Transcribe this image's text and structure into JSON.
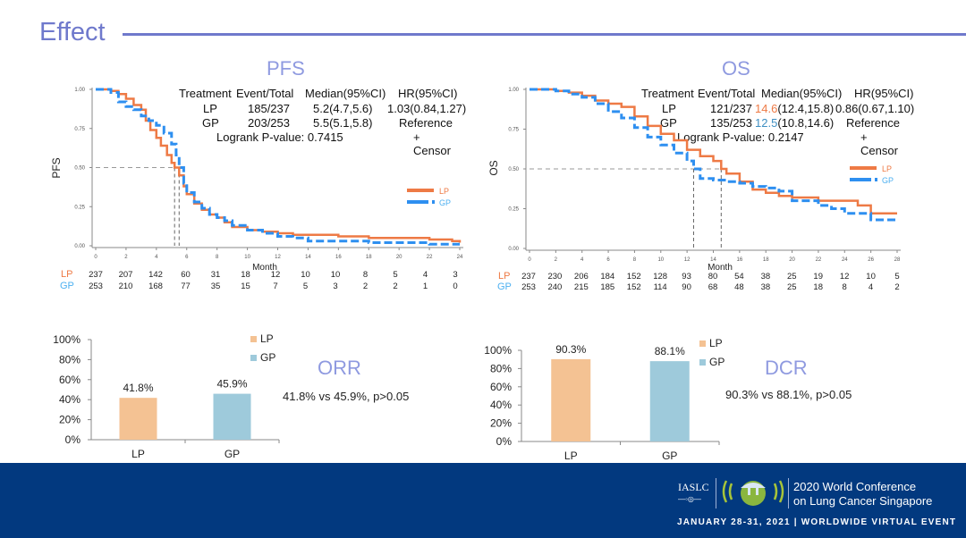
{
  "header": {
    "title": "Effect"
  },
  "pfs": {
    "title": "PFS",
    "table": {
      "headers": [
        "Treatment",
        "Event/Total",
        "Median(95%CI)",
        "HR(95%CI)"
      ],
      "rows": [
        {
          "arm": "LP",
          "events": "185/237",
          "median": "5.2(4.7,5.6)",
          "median_value": "",
          "median_ci": "",
          "hr": "1.03(0.84,1.27)"
        },
        {
          "arm": "GP",
          "events": "203/253",
          "median": "5.5(5.1,5.8)",
          "median_value": "",
          "median_ci": "",
          "hr": "Reference"
        }
      ],
      "logrank": "Logrank P-value: 0.7415",
      "censor": "+ Censor"
    }
  },
  "os": {
    "title": "OS",
    "table": {
      "headers": [
        "Treatment",
        "Event/Total",
        "Median(95%CI)",
        "HR(95%CI)"
      ],
      "rows": [
        {
          "arm": "LP",
          "events": "121/237",
          "median_value": "14.6",
          "median_ci": "(12.4,15.8)",
          "hr": "0.86(0.67,1.10)"
        },
        {
          "arm": "GP",
          "events": "135/253",
          "median_value": "12.5",
          "median_ci": "(10.8,14.6)",
          "hr": "Reference"
        }
      ],
      "logrank": "Logrank P-value: 0.2147",
      "censor": "+ Censor"
    }
  },
  "orr": {
    "title": "ORR",
    "note": "41.8% vs 45.9%, p>0.05"
  },
  "dcr": {
    "title": "DCR",
    "note": "90.3% vs 88.1%, p>0.05"
  },
  "colors": {
    "lp": "#ee7a45",
    "gp": "#2e8ff0",
    "lp_bar": "#f4c293",
    "gp_bar": "#9ecadb",
    "accent": "#6f79cc",
    "footer": "#02397f"
  },
  "footer": {
    "org": "IASLC",
    "conference_line1": "2020 World Conference",
    "conference_line2": "on Lung Cancer Singapore",
    "dates": "JANUARY 28-31, 2021 | WORLDWIDE VIRTUAL EVENT"
  },
  "chart_data": [
    {
      "type": "line",
      "title": "PFS",
      "xlabel": "Month",
      "ylabel": "PFS",
      "xlim": [
        0,
        24
      ],
      "ylim": [
        0,
        1
      ],
      "xticks": [
        0,
        2,
        4,
        6,
        8,
        10,
        12,
        14,
        16,
        18,
        20,
        22,
        24
      ],
      "yticks": [
        "0.00",
        "0.25",
        "0.50",
        "0.75",
        "1.00"
      ],
      "legend": [
        "LP",
        "GP"
      ],
      "legend_position": "right",
      "median_reference": {
        "y": 0.5,
        "x": [
          5.2,
          5.5
        ]
      },
      "series": [
        {
          "name": "LP",
          "style": "solid",
          "x": [
            0,
            1,
            1.5,
            2,
            2.5,
            3,
            3.3,
            3.6,
            4,
            4.3,
            4.7,
            5,
            5.2,
            5.5,
            5.8,
            6,
            6.5,
            7,
            7.5,
            8,
            8.5,
            9,
            10,
            11,
            12,
            13,
            14,
            15,
            16,
            18,
            20,
            22,
            23.5,
            24
          ],
          "y": [
            1,
            0.99,
            0.97,
            0.94,
            0.9,
            0.87,
            0.8,
            0.74,
            0.69,
            0.64,
            0.58,
            0.53,
            0.5,
            0.45,
            0.38,
            0.33,
            0.27,
            0.23,
            0.2,
            0.18,
            0.15,
            0.12,
            0.1,
            0.09,
            0.08,
            0.07,
            0.07,
            0.07,
            0.06,
            0.05,
            0.05,
            0.04,
            0.03,
            0.02
          ]
        },
        {
          "name": "GP",
          "style": "dashed",
          "x": [
            0,
            1,
            1.5,
            2,
            2.5,
            3,
            3.5,
            4,
            4.5,
            5,
            5.3,
            5.5,
            5.8,
            6,
            6.5,
            7,
            7.5,
            8,
            8.5,
            9,
            10,
            11,
            12,
            13,
            14,
            15,
            16,
            18,
            20,
            22,
            24
          ],
          "y": [
            1,
            0.98,
            0.92,
            0.89,
            0.87,
            0.83,
            0.8,
            0.77,
            0.72,
            0.65,
            0.58,
            0.5,
            0.4,
            0.34,
            0.28,
            0.24,
            0.2,
            0.18,
            0.16,
            0.13,
            0.1,
            0.08,
            0.06,
            0.05,
            0.03,
            0.03,
            0.03,
            0.02,
            0.02,
            0.01,
            0.01
          ]
        }
      ],
      "risk_table": {
        "label": "Month",
        "times": [
          0,
          2,
          4,
          6,
          8,
          10,
          12,
          14,
          16,
          18,
          20,
          22,
          24
        ],
        "LP": [
          237,
          207,
          142,
          60,
          31,
          18,
          12,
          10,
          10,
          8,
          5,
          4,
          3
        ],
        "GP": [
          253,
          210,
          168,
          77,
          35,
          15,
          7,
          5,
          3,
          2,
          2,
          1,
          0
        ]
      }
    },
    {
      "type": "line",
      "title": "OS",
      "xlabel": "Month",
      "ylabel": "OS",
      "xlim": [
        0,
        28
      ],
      "ylim": [
        0,
        1
      ],
      "xticks": [
        0,
        2,
        4,
        6,
        8,
        10,
        12,
        14,
        16,
        18,
        20,
        22,
        24,
        26,
        28
      ],
      "yticks": [
        "0.00",
        "0.25",
        "0.50",
        "0.75",
        "1.00"
      ],
      "legend": [
        "LP",
        "GP"
      ],
      "legend_position": "right",
      "median_reference": {
        "y": 0.5,
        "x": [
          12.5,
          14.6
        ]
      },
      "series": [
        {
          "name": "LP",
          "style": "solid",
          "x": [
            0,
            2,
            3,
            4,
            5,
            6,
            7,
            8,
            9,
            10,
            11,
            12,
            13,
            14,
            14.6,
            15,
            16,
            17,
            18,
            19,
            20,
            22,
            24,
            25,
            26,
            28
          ],
          "y": [
            1,
            0.99,
            0.98,
            0.96,
            0.93,
            0.91,
            0.89,
            0.83,
            0.77,
            0.72,
            0.68,
            0.62,
            0.58,
            0.55,
            0.5,
            0.47,
            0.42,
            0.37,
            0.35,
            0.33,
            0.32,
            0.3,
            0.3,
            0.27,
            0.22,
            0.22
          ]
        },
        {
          "name": "GP",
          "style": "dashed",
          "x": [
            0,
            2,
            3,
            4,
            5,
            6,
            7,
            8,
            9,
            10,
            11,
            12,
            12.5,
            13,
            14,
            15,
            16,
            17,
            18,
            19,
            20,
            22,
            23,
            24,
            25,
            26,
            28
          ],
          "y": [
            1,
            0.99,
            0.97,
            0.95,
            0.91,
            0.86,
            0.82,
            0.76,
            0.7,
            0.65,
            0.6,
            0.55,
            0.5,
            0.44,
            0.43,
            0.42,
            0.41,
            0.39,
            0.38,
            0.36,
            0.3,
            0.27,
            0.25,
            0.22,
            0.22,
            0.18,
            0.18
          ]
        }
      ],
      "risk_table": {
        "label": "Month",
        "times": [
          0,
          2,
          4,
          6,
          8,
          10,
          12,
          14,
          16,
          18,
          20,
          22,
          24,
          26,
          28
        ],
        "LP": [
          237,
          230,
          206,
          184,
          152,
          128,
          93,
          80,
          54,
          38,
          25,
          19,
          12,
          10,
          5
        ],
        "GP": [
          253,
          240,
          215,
          185,
          152,
          114,
          90,
          68,
          48,
          38,
          25,
          18,
          8,
          4,
          2
        ]
      }
    },
    {
      "type": "bar",
      "title": "ORR",
      "categories": [
        "LP",
        "GP"
      ],
      "values": [
        41.8,
        45.9
      ],
      "labels": [
        "41.8%",
        "45.9%"
      ],
      "yticks": [
        "0%",
        "20%",
        "40%",
        "60%",
        "80%",
        "100%"
      ],
      "ylim": [
        0,
        100
      ],
      "legend": [
        "LP",
        "GP"
      ],
      "legend_position": "top-right"
    },
    {
      "type": "bar",
      "title": "DCR",
      "categories": [
        "LP",
        "GP"
      ],
      "values": [
        90.3,
        88.1
      ],
      "labels": [
        "90.3%",
        "88.1%"
      ],
      "yticks": [
        "0%",
        "20%",
        "40%",
        "60%",
        "80%",
        "100%"
      ],
      "ylim": [
        0,
        100
      ],
      "legend": [
        "LP",
        "GP"
      ],
      "legend_position": "top-right"
    }
  ]
}
